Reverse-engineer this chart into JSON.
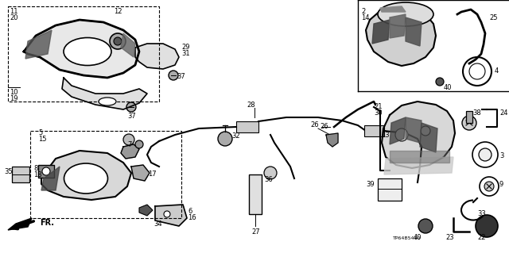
{
  "bg_color": "#ffffff",
  "line_color": "#000000",
  "gray_fill": "#888888",
  "light_gray": "#cccccc",
  "font_size": 6,
  "part_number": "TP64B5410"
}
